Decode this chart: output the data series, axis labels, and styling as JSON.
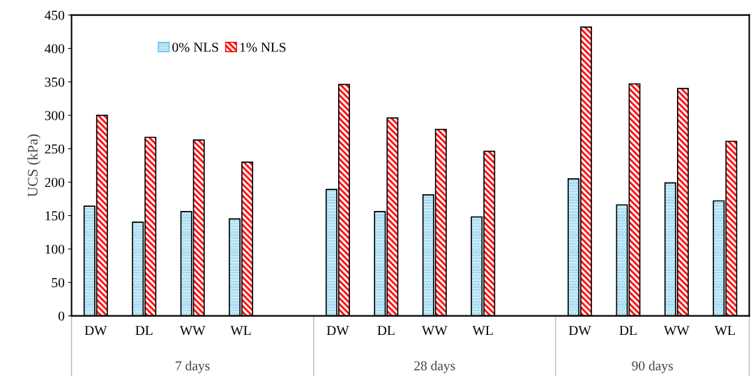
{
  "chart_data": {
    "type": "bar",
    "ylabel": "UCS (kPa)",
    "categories": [
      "DW",
      "DL",
      "WW",
      "WL",
      null,
      "DW",
      "DL",
      "WW",
      "WL",
      null,
      "DW",
      "DL",
      "WW",
      "WL"
    ],
    "series": [
      {
        "name": "0% NLS",
        "color": "#5bc0e8",
        "values": [
          164,
          140,
          156,
          145,
          null,
          189,
          156,
          181,
          148,
          null,
          205,
          166,
          199,
          172
        ]
      },
      {
        "name": "1% NLS",
        "color": "#ff0000",
        "values": [
          300,
          267,
          263,
          230,
          null,
          346,
          296,
          279,
          246,
          null,
          432,
          347,
          340,
          261
        ]
      }
    ],
    "ylim": [
      0,
      450
    ],
    "yticks": [
      0,
      50,
      100,
      150,
      200,
      250,
      300,
      350,
      400,
      450
    ],
    "annotations": [
      "7 days",
      "28 days",
      "90 days"
    ],
    "grid": false,
    "legend": "top left"
  }
}
